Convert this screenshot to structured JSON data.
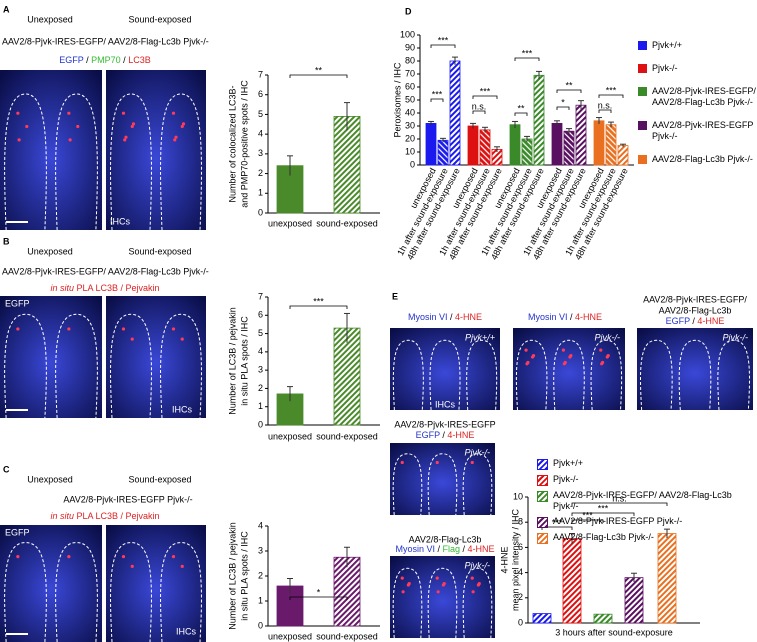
{
  "panels": {
    "A": {
      "label": "A",
      "left": "Unexposed",
      "right": "Sound-exposed",
      "construct": "AAV2/8-Pjvk-IRES-EGFP/ AAV2/8-Flag-Lc3b Pjvk-/-",
      "stain": [
        "EGFP",
        " / ",
        "PMP70",
        " / ",
        "LC3B"
      ],
      "image_label": "IHCs"
    },
    "B": {
      "label": "B",
      "left": "Unexposed",
      "right": "Sound-exposed",
      "construct": "AAV2/8-Pjvk-IRES-EGFP/ AAV2/8-Flag-Lc3b Pjvk-/-",
      "stain": [
        "in situ",
        " PLA LC3B / Pejvakin"
      ],
      "image_tag": "EGFP",
      "image_label": "IHCs"
    },
    "C": {
      "label": "C",
      "left": "Unexposed",
      "right": "Sound-exposed",
      "construct": "AAV2/8-Pjvk-IRES-EGFP Pjvk-/-",
      "stain": [
        "in situ",
        " PLA LC3B / Pejvakin"
      ],
      "image_tag": "EGFP",
      "image_label": "IHCs"
    },
    "D": {
      "label": "D"
    },
    "E": {
      "label": "E",
      "images": [
        {
          "stain": [
            "Myosin VI",
            " / ",
            "4-HNE"
          ],
          "tag": "Pjvk+/+",
          "image_label": "IHCs"
        },
        {
          "stain": [
            "Myosin VI",
            " / ",
            "4-HNE"
          ],
          "tag": "Pjvk-/-"
        },
        {
          "construct": [
            "AAV2/8-Pjvk-IRES-EGFP/",
            "AAV2/8-Flag-Lc3b"
          ],
          "stain": [
            "EGFP",
            " / ",
            "4-HNE"
          ],
          "tag": "Pjvk-/-"
        },
        {
          "construct": [
            "AAV2/8-Pjvk-IRES-EGFP"
          ],
          "stain": [
            "EGFP",
            " / ",
            "4-HNE"
          ],
          "tag": "Pjvk-/-"
        },
        {
          "construct": [
            "AAV2/8-Flag-Lc3b"
          ],
          "stain": [
            "Myosin VI",
            " / ",
            "Flag",
            " / ",
            "4-HNE"
          ],
          "tag": "Pjvk-/-"
        }
      ]
    }
  },
  "chart_data": [
    {
      "type": "bar",
      "ylabel": [
        "Number of colocalized LC3B-",
        "and PMP70-positive spots / IHC"
      ],
      "categories": [
        "unexposed",
        "sound-exposed"
      ],
      "values": [
        2.4,
        4.9
      ],
      "errors": [
        0.5,
        0.7
      ],
      "color": "#4a8a2a",
      "ylim": [
        0,
        7
      ],
      "yticks": [
        0,
        1,
        2,
        3,
        4,
        5,
        6,
        7
      ],
      "annotations": [
        "**"
      ]
    },
    {
      "type": "bar",
      "ylabel": [
        "Number of LC3B / pejvakin",
        "in situ PLA spots / IHC"
      ],
      "categories": [
        "unexposed",
        "sound-exposed"
      ],
      "values": [
        1.7,
        5.3
      ],
      "errors": [
        0.4,
        0.8
      ],
      "color": "#4a8a2a",
      "ylim": [
        0,
        7
      ],
      "yticks": [
        0,
        1,
        2,
        3,
        4,
        5,
        6,
        7
      ],
      "annotations": [
        "***"
      ]
    },
    {
      "type": "bar",
      "ylabel": [
        "Number of LC3B / pejvakin",
        "in situ PLA spots / IHC"
      ],
      "categories": [
        "unexposed",
        "sound-exposed"
      ],
      "values": [
        1.6,
        2.75
      ],
      "errors": [
        0.3,
        0.4
      ],
      "color": "#6a1a6a",
      "ylim": [
        0,
        4
      ],
      "yticks": [
        0,
        1,
        2,
        3,
        4
      ],
      "annotations": [
        "*"
      ]
    },
    {
      "type": "bar",
      "ylabel": "Peroxisomes / IHC",
      "categories": [
        "unexposed",
        "1h after sound-exposure",
        "48h after sound-exposure"
      ],
      "series": [
        {
          "name": "Pjvk+/+",
          "color": "#1a1aee",
          "values": [
            32,
            19,
            80
          ],
          "errors": [
            1.5,
            1.5,
            3
          ]
        },
        {
          "name": "Pjvk-/-",
          "color": "#dd1111",
          "values": [
            30,
            27,
            12
          ],
          "errors": [
            2,
            2,
            2
          ]
        },
        {
          "name": "AAV2/8-Pjvk-IRES-EGFP/ AAV2/8-Flag-Lc3b Pjvk-/-",
          "color": "#3a8a2a",
          "values": [
            31,
            20,
            69
          ],
          "errors": [
            2.5,
            2,
            3
          ]
        },
        {
          "name": "AAV2/8-Pjvk-IRES-EGFP Pjvk-/-",
          "color": "#5a1060",
          "values": [
            32,
            26,
            46
          ],
          "errors": [
            2,
            2,
            3.5
          ]
        },
        {
          "name": "AAV2/8-Flag-Lc3b Pjvk-/-",
          "color": "#e87020",
          "values": [
            34,
            31,
            15
          ],
          "errors": [
            2.5,
            2,
            1
          ]
        }
      ],
      "ylim": [
        0,
        100
      ],
      "yticks": [
        0,
        10,
        20,
        30,
        40,
        50,
        60,
        70,
        80,
        90,
        100
      ],
      "annotations": [
        "***",
        "***",
        "***",
        "n.s.",
        "***",
        "**",
        "**",
        "*",
        "***",
        "n.s."
      ]
    },
    {
      "type": "bar",
      "ylabel": [
        "4-HNE",
        "mean pixel intensity / IHC"
      ],
      "xlabel": "3 hours after sound-exposure",
      "series": [
        {
          "name": "Pjvk+/+",
          "color": "#1a1aee",
          "values": [
            0.75
          ],
          "errors": [
            null
          ]
        },
        {
          "name": "Pjvk-/-",
          "color": "#dd1111",
          "values": [
            6.7
          ],
          "errors": [
            0.4
          ]
        },
        {
          "name": "AAV2/8-Pjvk-IRES-EGFP/ AAV2/8-Flag-Lc3b Pjvk-/-",
          "color": "#3a8a2a",
          "values": [
            0.7
          ],
          "errors": [
            null
          ]
        },
        {
          "name": "AAV2/8-Pjvk-IRES-EGFP Pjvk-/-",
          "color": "#5a1060",
          "values": [
            3.6
          ],
          "errors": [
            0.35
          ]
        },
        {
          "name": "AAV2/8-Flag-Lc3b Pjvk-/-",
          "color": "#e87020",
          "values": [
            7.1
          ],
          "errors": [
            0.35
          ]
        }
      ],
      "ylim": [
        0,
        10
      ],
      "yticks": [
        0,
        2,
        4,
        6,
        8,
        10
      ],
      "annotations": [
        "***",
        "***",
        "***",
        "n.s."
      ]
    }
  ]
}
